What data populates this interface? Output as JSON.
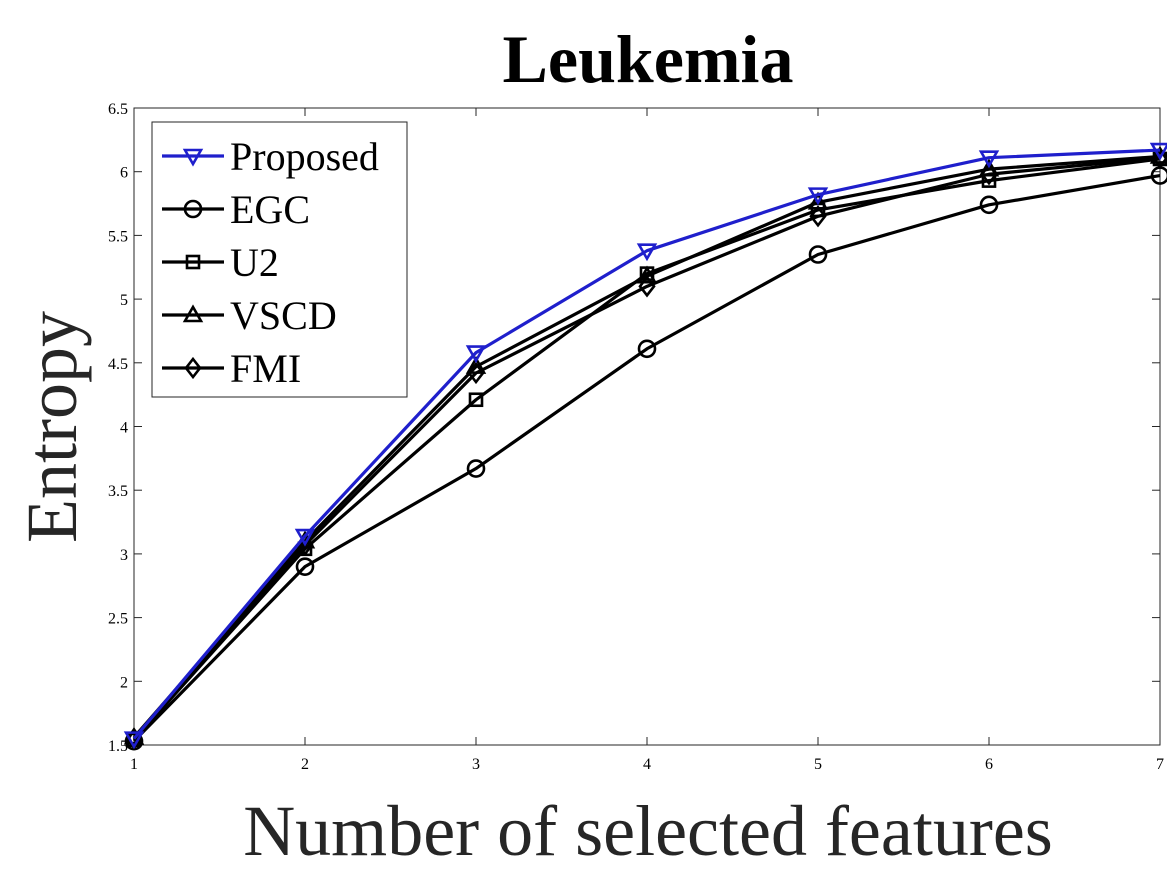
{
  "chart_data": {
    "type": "line",
    "title": "Leukemia",
    "xlabel": "Number of selected features",
    "ylabel": "Entropy",
    "xlim": [
      1,
      7
    ],
    "ylim": [
      1.5,
      6.5
    ],
    "x_ticks": [
      "1",
      "2",
      "3",
      "4",
      "5",
      "6",
      "7"
    ],
    "y_ticks": [
      "1.5",
      "2",
      "2.5",
      "3",
      "3.5",
      "4",
      "4.5",
      "5",
      "5.5",
      "6",
      "6.5"
    ],
    "grid": false,
    "legend_position": "top-left",
    "x": [
      1,
      2,
      3,
      4,
      5,
      6,
      7
    ],
    "series": [
      {
        "name": "Proposed",
        "marker": "triangle-down",
        "color": "#1f1fcc",
        "values": [
          1.55,
          3.14,
          4.58,
          5.38,
          5.82,
          6.11,
          6.17
        ]
      },
      {
        "name": "EGC",
        "marker": "circle",
        "color": "#000000",
        "values": [
          1.53,
          2.9,
          3.67,
          4.61,
          5.35,
          5.74,
          5.97
        ]
      },
      {
        "name": "U2",
        "marker": "square",
        "color": "#000000",
        "values": [
          1.54,
          3.04,
          4.21,
          5.2,
          5.7,
          5.93,
          6.1
        ]
      },
      {
        "name": "VSCD",
        "marker": "triangle-up",
        "color": "#000000",
        "values": [
          1.56,
          3.1,
          4.47,
          5.18,
          5.76,
          6.02,
          6.12
        ]
      },
      {
        "name": "FMI",
        "marker": "diamond",
        "color": "#000000",
        "values": [
          1.55,
          3.07,
          4.42,
          5.1,
          5.65,
          5.98,
          6.11
        ]
      }
    ]
  }
}
